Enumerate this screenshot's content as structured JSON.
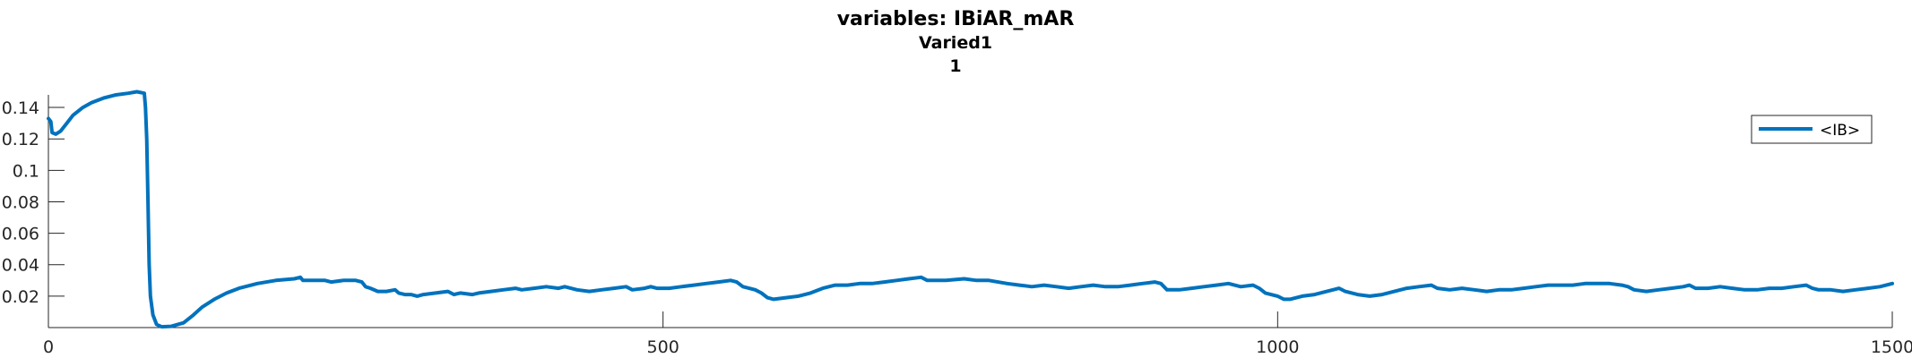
{
  "chart_data": {
    "type": "line",
    "title": "variables: IBiAR_mAR",
    "subtitle_lines": [
      "Varied1",
      "1"
    ],
    "xlabel": "",
    "ylabel": "",
    "xlim": [
      0,
      1500
    ],
    "ylim": [
      0,
      0.148
    ],
    "x_ticks": [
      0,
      500,
      1000,
      1500
    ],
    "x_tick_labels": [
      "0",
      "500",
      "1000",
      "1500"
    ],
    "y_ticks": [
      0.02,
      0.04,
      0.06,
      0.08,
      0.1,
      0.12,
      0.14
    ],
    "y_tick_labels": [
      "0.02",
      "0.04",
      "0.06",
      "0.08",
      "0.1",
      "0.12",
      "0.14"
    ],
    "grid": false,
    "legend_position": "top-right",
    "series": [
      {
        "name": "<IB>",
        "color": "#0072BD",
        "points": [
          [
            0,
            0.133
          ],
          [
            2,
            0.131
          ],
          [
            3,
            0.124
          ],
          [
            6,
            0.123
          ],
          [
            10,
            0.125
          ],
          [
            15,
            0.13
          ],
          [
            20,
            0.135
          ],
          [
            28,
            0.14
          ],
          [
            35,
            0.143
          ],
          [
            45,
            0.146
          ],
          [
            55,
            0.148
          ],
          [
            65,
            0.149
          ],
          [
            72,
            0.15
          ],
          [
            78,
            0.149
          ],
          [
            79,
            0.14
          ],
          [
            80,
            0.12
          ],
          [
            81,
            0.08
          ],
          [
            82,
            0.04
          ],
          [
            83,
            0.02
          ],
          [
            85,
            0.008
          ],
          [
            88,
            0.002
          ],
          [
            92,
            0.0005
          ],
          [
            100,
            0.0008
          ],
          [
            110,
            0.003
          ],
          [
            118,
            0.008
          ],
          [
            125,
            0.013
          ],
          [
            135,
            0.018
          ],
          [
            145,
            0.022
          ],
          [
            155,
            0.025
          ],
          [
            170,
            0.028
          ],
          [
            185,
            0.03
          ],
          [
            200,
            0.031
          ],
          [
            205,
            0.032
          ],
          [
            207,
            0.03
          ],
          [
            215,
            0.03
          ],
          [
            225,
            0.03
          ],
          [
            230,
            0.029
          ],
          [
            240,
            0.03
          ],
          [
            250,
            0.03
          ],
          [
            255,
            0.029
          ],
          [
            258,
            0.026
          ],
          [
            262,
            0.025
          ],
          [
            268,
            0.023
          ],
          [
            275,
            0.023
          ],
          [
            282,
            0.024
          ],
          [
            285,
            0.022
          ],
          [
            290,
            0.021
          ],
          [
            295,
            0.021
          ],
          [
            300,
            0.02
          ],
          [
            305,
            0.021
          ],
          [
            315,
            0.022
          ],
          [
            325,
            0.023
          ],
          [
            330,
            0.021
          ],
          [
            335,
            0.022
          ],
          [
            345,
            0.021
          ],
          [
            350,
            0.022
          ],
          [
            360,
            0.023
          ],
          [
            370,
            0.024
          ],
          [
            380,
            0.025
          ],
          [
            385,
            0.024
          ],
          [
            395,
            0.025
          ],
          [
            405,
            0.026
          ],
          [
            415,
            0.025
          ],
          [
            420,
            0.026
          ],
          [
            430,
            0.024
          ],
          [
            440,
            0.023
          ],
          [
            450,
            0.024
          ],
          [
            460,
            0.025
          ],
          [
            470,
            0.026
          ],
          [
            475,
            0.024
          ],
          [
            485,
            0.025
          ],
          [
            490,
            0.026
          ],
          [
            495,
            0.025
          ],
          [
            505,
            0.025
          ],
          [
            515,
            0.026
          ],
          [
            525,
            0.027
          ],
          [
            535,
            0.028
          ],
          [
            545,
            0.029
          ],
          [
            555,
            0.03
          ],
          [
            560,
            0.029
          ],
          [
            565,
            0.026
          ],
          [
            575,
            0.024
          ],
          [
            580,
            0.022
          ],
          [
            585,
            0.019
          ],
          [
            590,
            0.018
          ],
          [
            600,
            0.019
          ],
          [
            610,
            0.02
          ],
          [
            620,
            0.022
          ],
          [
            630,
            0.025
          ],
          [
            640,
            0.027
          ],
          [
            650,
            0.027
          ],
          [
            660,
            0.028
          ],
          [
            670,
            0.028
          ],
          [
            680,
            0.029
          ],
          [
            690,
            0.03
          ],
          [
            700,
            0.031
          ],
          [
            710,
            0.032
          ],
          [
            715,
            0.03
          ],
          [
            730,
            0.03
          ],
          [
            745,
            0.031
          ],
          [
            755,
            0.03
          ],
          [
            765,
            0.03
          ],
          [
            780,
            0.028
          ],
          [
            790,
            0.027
          ],
          [
            800,
            0.026
          ],
          [
            810,
            0.027
          ],
          [
            820,
            0.026
          ],
          [
            830,
            0.025
          ],
          [
            840,
            0.026
          ],
          [
            850,
            0.027
          ],
          [
            860,
            0.026
          ],
          [
            870,
            0.026
          ],
          [
            880,
            0.027
          ],
          [
            890,
            0.028
          ],
          [
            900,
            0.029
          ],
          [
            905,
            0.028
          ],
          [
            910,
            0.024
          ],
          [
            920,
            0.024
          ],
          [
            930,
            0.025
          ],
          [
            940,
            0.026
          ],
          [
            950,
            0.027
          ],
          [
            960,
            0.028
          ],
          [
            970,
            0.026
          ],
          [
            980,
            0.027
          ],
          [
            985,
            0.025
          ],
          [
            990,
            0.022
          ],
          [
            1000,
            0.02
          ],
          [
            1005,
            0.018
          ],
          [
            1010,
            0.018
          ],
          [
            1020,
            0.02
          ],
          [
            1030,
            0.021
          ],
          [
            1040,
            0.023
          ],
          [
            1050,
            0.025
          ],
          [
            1055,
            0.023
          ],
          [
            1065,
            0.021
          ],
          [
            1075,
            0.02
          ],
          [
            1085,
            0.021
          ],
          [
            1095,
            0.023
          ],
          [
            1105,
            0.025
          ],
          [
            1115,
            0.026
          ],
          [
            1125,
            0.027
          ],
          [
            1130,
            0.025
          ],
          [
            1140,
            0.024
          ],
          [
            1150,
            0.025
          ],
          [
            1160,
            0.024
          ],
          [
            1170,
            0.023
          ],
          [
            1180,
            0.024
          ],
          [
            1190,
            0.024
          ],
          [
            1200,
            0.025
          ],
          [
            1210,
            0.026
          ],
          [
            1220,
            0.027
          ],
          [
            1230,
            0.027
          ],
          [
            1240,
            0.027
          ],
          [
            1250,
            0.028
          ],
          [
            1260,
            0.028
          ],
          [
            1270,
            0.028
          ],
          [
            1280,
            0.027
          ],
          [
            1285,
            0.026
          ],
          [
            1290,
            0.024
          ],
          [
            1300,
            0.023
          ],
          [
            1310,
            0.024
          ],
          [
            1320,
            0.025
          ],
          [
            1330,
            0.026
          ],
          [
            1335,
            0.027
          ],
          [
            1340,
            0.025
          ],
          [
            1350,
            0.025
          ],
          [
            1360,
            0.026
          ],
          [
            1370,
            0.025
          ],
          [
            1380,
            0.024
          ],
          [
            1390,
            0.024
          ],
          [
            1400,
            0.025
          ],
          [
            1410,
            0.025
          ],
          [
            1420,
            0.026
          ],
          [
            1430,
            0.027
          ],
          [
            1435,
            0.025
          ],
          [
            1440,
            0.024
          ],
          [
            1450,
            0.024
          ],
          [
            1460,
            0.023
          ],
          [
            1470,
            0.024
          ],
          [
            1480,
            0.025
          ],
          [
            1490,
            0.026
          ],
          [
            1500,
            0.028
          ]
        ]
      }
    ]
  }
}
